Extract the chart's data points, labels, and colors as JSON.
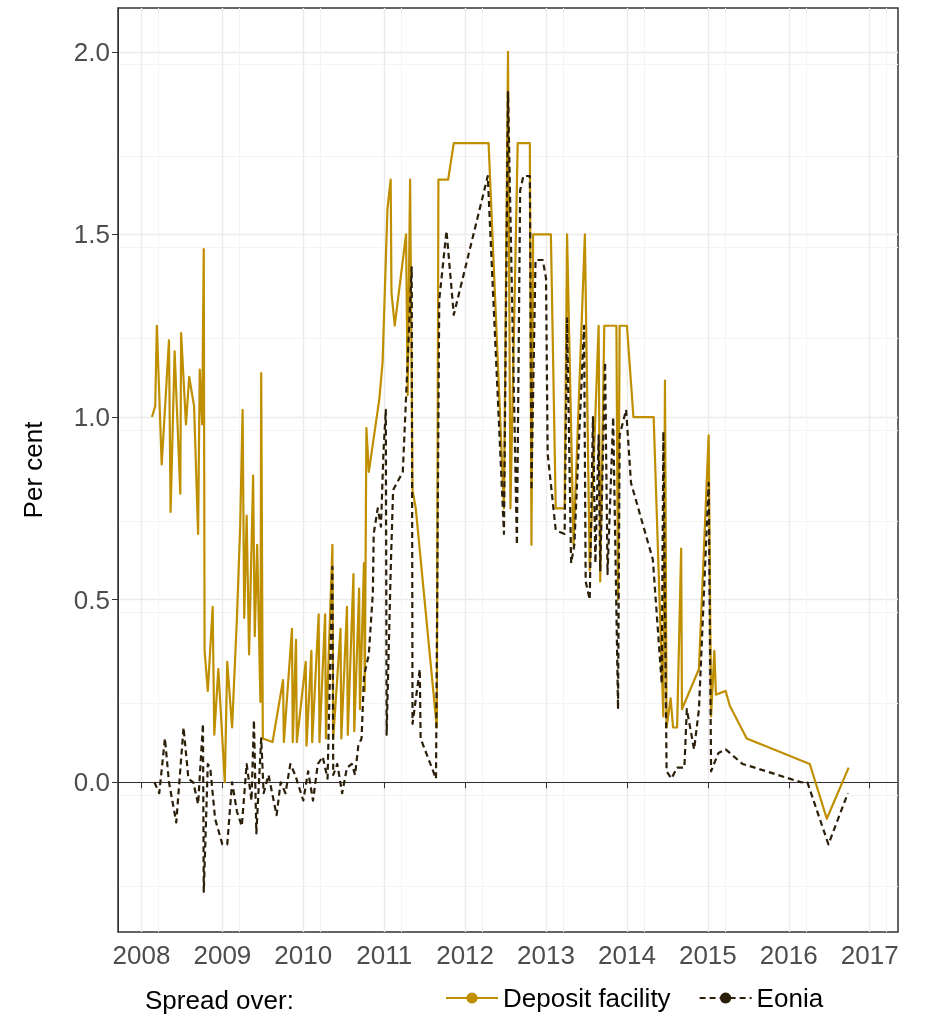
{
  "chart_data": {
    "type": "line",
    "xlabel": null,
    "ylabel": "Per cent",
    "legend_title": "Spread over:",
    "legend": "bottom",
    "grid": true,
    "xlim": [
      2007.71,
      2017.35
    ],
    "xticks": [
      2008,
      2009,
      2010,
      2011,
      2012,
      2013,
      2014,
      2015,
      2016,
      2017
    ],
    "ylim": [
      -0.41,
      2.12
    ],
    "yticks": [
      {
        "value": 0,
        "label": "0.0"
      },
      {
        "value": 0.5,
        "label": "0.5"
      },
      {
        "value": 1,
        "label": "1.0"
      },
      {
        "value": 1.5,
        "label": "1.5"
      },
      {
        "value": 2,
        "label": "2.0"
      }
    ],
    "series": [
      {
        "name": "Deposit facility",
        "color": "#bf8f00",
        "line_style": "solid",
        "x": [
          2008.13,
          2008.17,
          2008.19,
          2008.25,
          2008.34,
          2008.36,
          2008.41,
          2008.48,
          2008.49,
          2008.55,
          2008.59,
          2008.65,
          2008.7,
          2008.72,
          2008.75,
          2008.77,
          2008.78,
          2008.82,
          2008.88,
          2008.9,
          2008.95,
          2009.03,
          2009.06,
          2009.12,
          2009.18,
          2009.22,
          2009.25,
          2009.27,
          2009.3,
          2009.33,
          2009.38,
          2009.4,
          2009.43,
          2009.47,
          2009.48,
          2009.5,
          2009.62,
          2009.75,
          2009.76,
          2009.86,
          2009.87,
          2009.91,
          2009.92,
          2010.03,
          2010.04,
          2010.1,
          2010.11,
          2010.19,
          2010.2,
          2010.27,
          2010.28,
          2010.36,
          2010.37,
          2010.46,
          2010.47,
          2010.54,
          2010.55,
          2010.62,
          2010.63,
          2010.69,
          2010.7,
          2010.75,
          2010.76,
          2010.78,
          2010.81,
          2010.94,
          2010.98,
          2011.04,
          2011.08,
          2011.09,
          2011.13,
          2011.27,
          2011.29,
          2011.32,
          2011.35,
          2011.39,
          2011.65,
          2011.67,
          2011.79,
          2011.86,
          2012.29,
          2012.48,
          2012.53,
          2012.56,
          2012.65,
          2012.8,
          2012.82,
          2012.84,
          2013.06,
          2013.12,
          2013.23,
          2013.26,
          2013.34,
          2013.48,
          2013.54,
          2013.65,
          2013.67,
          2013.72,
          2013.87,
          2013.89,
          2013.91,
          2014.0,
          2014.08,
          2014.33,
          2014.45,
          2014.47,
          2014.49,
          2014.54,
          2014.57,
          2014.62,
          2014.67,
          2014.68,
          2014.89,
          2015.01,
          2015.04,
          2015.08,
          2015.1,
          2015.22,
          2015.27,
          2015.48,
          2016.26,
          2016.47,
          2016.74
        ],
        "values": [
          1.0,
          1.03,
          1.25,
          0.87,
          1.21,
          0.74,
          1.18,
          0.79,
          1.23,
          0.98,
          1.11,
          1.03,
          0.68,
          1.13,
          0.98,
          1.46,
          0.36,
          0.25,
          0.48,
          0.13,
          0.31,
          0.0,
          0.33,
          0.15,
          0.45,
          0.7,
          1.02,
          0.45,
          0.73,
          0.35,
          0.84,
          0.4,
          0.65,
          0.22,
          1.12,
          0.12,
          0.11,
          0.28,
          0.11,
          0.42,
          0.11,
          0.39,
          0.11,
          0.33,
          0.1,
          0.36,
          0.11,
          0.46,
          0.11,
          0.46,
          0.12,
          0.65,
          0.12,
          0.42,
          0.12,
          0.48,
          0.13,
          0.57,
          0.14,
          0.53,
          0.2,
          0.6,
          0.25,
          0.97,
          0.85,
          1.05,
          1.15,
          1.57,
          1.65,
          1.34,
          1.25,
          1.5,
          1.06,
          1.65,
          0.8,
          0.75,
          0.15,
          1.65,
          1.65,
          1.75,
          1.75,
          0.75,
          2.0,
          0.75,
          1.75,
          1.75,
          0.65,
          1.5,
          1.5,
          0.75,
          0.75,
          1.5,
          0.65,
          1.5,
          0.58,
          1.25,
          0.55,
          1.25,
          1.25,
          0.5,
          1.25,
          1.25,
          1.0,
          1.0,
          0.18,
          1.1,
          0.15,
          0.23,
          0.15,
          0.15,
          0.64,
          0.2,
          0.31,
          0.95,
          0.18,
          0.36,
          0.24,
          0.25,
          0.21,
          0.12,
          0.05,
          -0.1,
          0.04
        ]
      },
      {
        "name": "Eonia",
        "color": "#2b1f0a",
        "line_style": "dashed",
        "x": [
          2008.16,
          2008.22,
          2008.29,
          2008.34,
          2008.43,
          2008.52,
          2008.58,
          2008.64,
          2008.7,
          2008.76,
          2008.77,
          2008.82,
          2008.85,
          2008.91,
          2009.0,
          2009.06,
          2009.12,
          2009.18,
          2009.24,
          2009.3,
          2009.36,
          2009.39,
          2009.42,
          2009.48,
          2009.51,
          2009.57,
          2009.67,
          2009.72,
          2009.78,
          2009.84,
          2009.9,
          2010.0,
          2010.06,
          2010.12,
          2010.18,
          2010.24,
          2010.3,
          2010.36,
          2010.37,
          2010.42,
          2010.48,
          2010.54,
          2010.6,
          2010.64,
          2010.68,
          2010.72,
          2010.75,
          2010.81,
          2010.86,
          2010.87,
          2010.92,
          2010.96,
          2010.99,
          2011.02,
          2011.03,
          2011.08,
          2011.11,
          2011.23,
          2011.34,
          2011.35,
          2011.44,
          2011.45,
          2011.64,
          2011.68,
          2011.77,
          2011.86,
          2012.28,
          2012.48,
          2012.53,
          2012.64,
          2012.68,
          2012.72,
          2012.8,
          2012.82,
          2012.87,
          2012.96,
          2013.0,
          2013.02,
          2013.12,
          2013.23,
          2013.26,
          2013.31,
          2013.35,
          2013.47,
          2013.49,
          2013.54,
          2013.58,
          2013.61,
          2013.65,
          2013.67,
          2013.73,
          2013.76,
          2013.83,
          2013.89,
          2013.91,
          2013.99,
          2014.05,
          2014.32,
          2014.43,
          2014.45,
          2014.49,
          2014.55,
          2014.62,
          2014.71,
          2014.74,
          2014.83,
          2014.89,
          2015.01,
          2015.04,
          2015.13,
          2015.22,
          2015.43,
          2015.58,
          2016.15,
          2016.23,
          2016.49,
          2016.73
        ],
        "values": [
          0.0,
          -0.03,
          0.12,
          0.0,
          -0.11,
          0.15,
          0.01,
          0.0,
          -0.06,
          0.16,
          -0.3,
          0.05,
          0.04,
          -0.1,
          -0.17,
          -0.17,
          0.0,
          -0.08,
          -0.12,
          0.05,
          -0.05,
          0.17,
          -0.14,
          0.12,
          -0.03,
          0.02,
          -0.09,
          0.0,
          -0.03,
          0.05,
          0.02,
          -0.05,
          0.03,
          -0.05,
          0.05,
          0.07,
          0.01,
          0.59,
          0.02,
          0.05,
          -0.03,
          0.04,
          0.05,
          0.02,
          0.1,
          0.12,
          0.29,
          0.35,
          0.52,
          0.68,
          0.75,
          0.7,
          0.9,
          1.02,
          0.13,
          0.58,
          0.8,
          0.85,
          1.41,
          0.16,
          0.31,
          0.12,
          0.01,
          1.32,
          1.51,
          1.28,
          1.66,
          0.68,
          1.89,
          0.65,
          1.62,
          1.66,
          1.66,
          0.8,
          1.43,
          1.43,
          1.38,
          0.9,
          0.69,
          0.68,
          1.27,
          0.6,
          0.65,
          1.25,
          0.55,
          0.5,
          1.0,
          0.6,
          0.95,
          0.58,
          1.15,
          0.57,
          1.0,
          0.2,
          0.95,
          1.02,
          0.82,
          0.61,
          0.27,
          0.96,
          0.03,
          0.01,
          0.04,
          0.04,
          0.2,
          0.09,
          0.2,
          0.82,
          0.03,
          0.08,
          0.09,
          0.05,
          0.04,
          0.0,
          0.0,
          -0.17,
          -0.03
        ]
      }
    ]
  }
}
